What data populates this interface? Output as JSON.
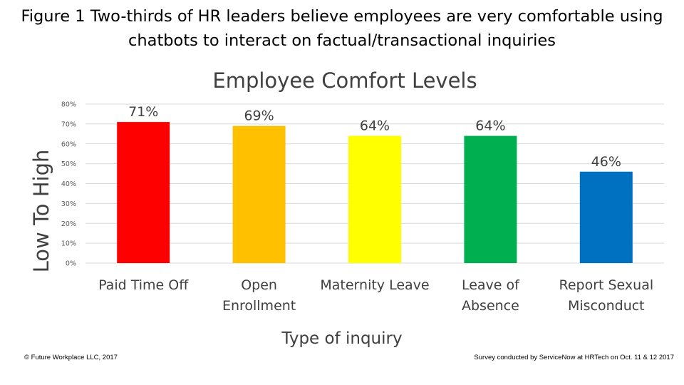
{
  "figure_title": {
    "line1": "Figure 1 Two-thirds of HR leaders believe employees are very comfortable using",
    "line2": "chatbots to interact on factual/transactional inquiries"
  },
  "chart_data": {
    "type": "bar",
    "title": "Employee Comfort Levels",
    "xlabel": "Type of inquiry",
    "ylabel": "Low To High",
    "categories": [
      "Paid Time Off",
      "Open Enrollment",
      "Maternity Leave",
      "Leave of Absence",
      "Report Sexual Misconduct"
    ],
    "category_lines": [
      [
        "Paid Time Off"
      ],
      [
        "Open",
        "Enrollment"
      ],
      [
        "Maternity Leave"
      ],
      [
        "Leave of",
        "Absence"
      ],
      [
        "Report Sexual",
        "Misconduct"
      ]
    ],
    "values": [
      71,
      69,
      64,
      64,
      46
    ],
    "data_labels": [
      "71%",
      "69%",
      "64%",
      "64%",
      "46%"
    ],
    "bar_colors": [
      "#ff0000",
      "#ffc000",
      "#ffff00",
      "#00b050",
      "#0070c0"
    ],
    "yticks": [
      0,
      10,
      20,
      30,
      40,
      50,
      60,
      70,
      80
    ],
    "ytick_labels": [
      "0%",
      "10%",
      "20%",
      "30%",
      "40%",
      "50%",
      "60%",
      "70%",
      "80%"
    ],
    "ylim": [
      0,
      80
    ],
    "grid": true,
    "legend": "none"
  },
  "footer": {
    "left": "© Future Workplace LLC, 2017",
    "right": "Survey conducted by ServiceNow at HRTech on Oct. 11 & 12 2017"
  },
  "colors": {
    "title_text": "#404040",
    "label_text": "#404040",
    "tick_text": "#595959",
    "gridline": "#d9d9d9"
  }
}
